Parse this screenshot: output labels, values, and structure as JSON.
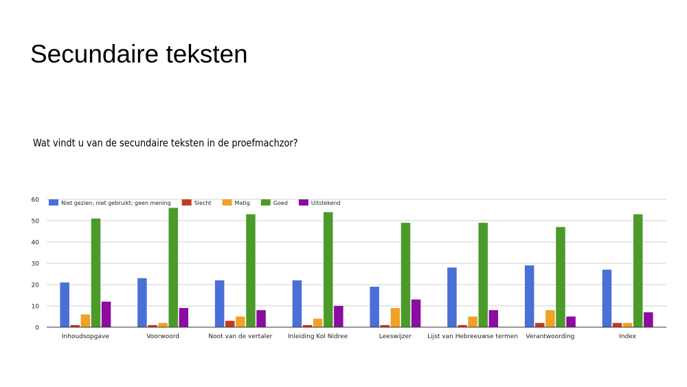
{
  "slide": {
    "title": "Secundaire teksten"
  },
  "chart_data": {
    "type": "bar",
    "title": "Wat vindt u van de secundaire teksten in de proefmachzor?",
    "xlabel": "",
    "ylabel": "",
    "ylim": [
      0,
      60
    ],
    "yticks": [
      0,
      10,
      20,
      30,
      40,
      50,
      60
    ],
    "grid": true,
    "legend_position": "top-left",
    "categories": [
      "Inhoudsopgave",
      "Voorwoord",
      "Noot van de vertaler",
      "Inleiding Kol Nidree",
      "Leeswijzer",
      "Lijst van Hebreeuwse termen",
      "Verantwoording",
      "Index"
    ],
    "series": [
      {
        "name": "Niet gezien; niet gebruikt; geen mening",
        "color": "#4a6fd6",
        "values": [
          21,
          23,
          22,
          22,
          19,
          28,
          29,
          27
        ]
      },
      {
        "name": "Slecht",
        "color": "#c23b22",
        "values": [
          1,
          1,
          3,
          1,
          1,
          1,
          2,
          2
        ]
      },
      {
        "name": "Matig",
        "color": "#f0a12a",
        "values": [
          6,
          2,
          5,
          4,
          9,
          5,
          8,
          2
        ]
      },
      {
        "name": "Goed",
        "color": "#4c9a2a",
        "values": [
          51,
          56,
          53,
          54,
          49,
          49,
          47,
          53
        ]
      },
      {
        "name": "Uitstekend",
        "color": "#8a0ca0",
        "values": [
          12,
          9,
          8,
          10,
          13,
          8,
          5,
          7
        ]
      }
    ]
  }
}
